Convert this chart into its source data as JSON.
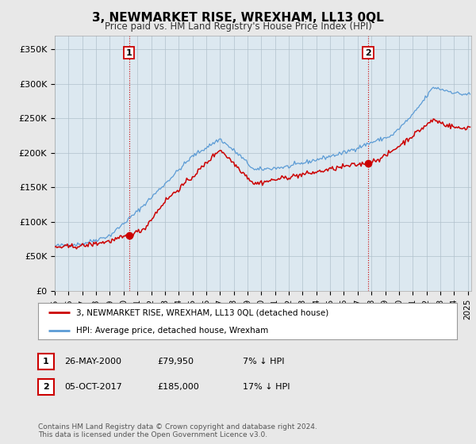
{
  "title": "3, NEWMARKET RISE, WREXHAM, LL13 0QL",
  "subtitle": "Price paid vs. HM Land Registry's House Price Index (HPI)",
  "ylabel_ticks": [
    "£0",
    "£50K",
    "£100K",
    "£150K",
    "£200K",
    "£250K",
    "£300K",
    "£350K"
  ],
  "ylim": [
    0,
    370000
  ],
  "ytick_vals": [
    0,
    50000,
    100000,
    150000,
    200000,
    250000,
    300000,
    350000
  ],
  "background_color": "#e8e8e8",
  "plot_bg_color": "#dce8f0",
  "hpi_color": "#5b9bd5",
  "price_color": "#cc0000",
  "vline_color": "#cc0000",
  "legend_label1": "3, NEWMARKET RISE, WREXHAM, LL13 0QL (detached house)",
  "legend_label2": "HPI: Average price, detached house, Wrexham",
  "note1_date": "26-MAY-2000",
  "note1_price": "£79,950",
  "note1_hpi": "7% ↓ HPI",
  "note2_date": "05-OCT-2017",
  "note2_price": "£185,000",
  "note2_hpi": "17% ↓ HPI",
  "footer": "Contains HM Land Registry data © Crown copyright and database right 2024.\nThis data is licensed under the Open Government Licence v3.0.",
  "hpi_anchors_years": [
    1995.0,
    1997.0,
    1999.0,
    2001.0,
    2003.0,
    2005.0,
    2007.0,
    2008.5,
    2009.5,
    2012.0,
    2014.0,
    2016.0,
    2018.0,
    2019.5,
    2021.0,
    2022.5,
    2023.5,
    2024.5,
    2025.25
  ],
  "hpi_anchors_vals": [
    65000,
    68000,
    80000,
    115000,
    155000,
    195000,
    220000,
    195000,
    175000,
    180000,
    190000,
    200000,
    215000,
    225000,
    255000,
    295000,
    290000,
    285000,
    285000
  ],
  "price_anchors_years": [
    1995.0,
    1997.0,
    1999.0,
    2000.42,
    2001.5,
    2003.0,
    2005.0,
    2007.0,
    2008.5,
    2009.5,
    2012.0,
    2014.0,
    2016.0,
    2017.75,
    2019.0,
    2021.0,
    2022.5,
    2023.5,
    2024.5,
    2025.25
  ],
  "price_anchors_vals": [
    63000,
    65000,
    72000,
    79950,
    90000,
    130000,
    165000,
    205000,
    175000,
    155000,
    165000,
    172000,
    180000,
    185000,
    195000,
    225000,
    248000,
    240000,
    235000,
    238000
  ]
}
